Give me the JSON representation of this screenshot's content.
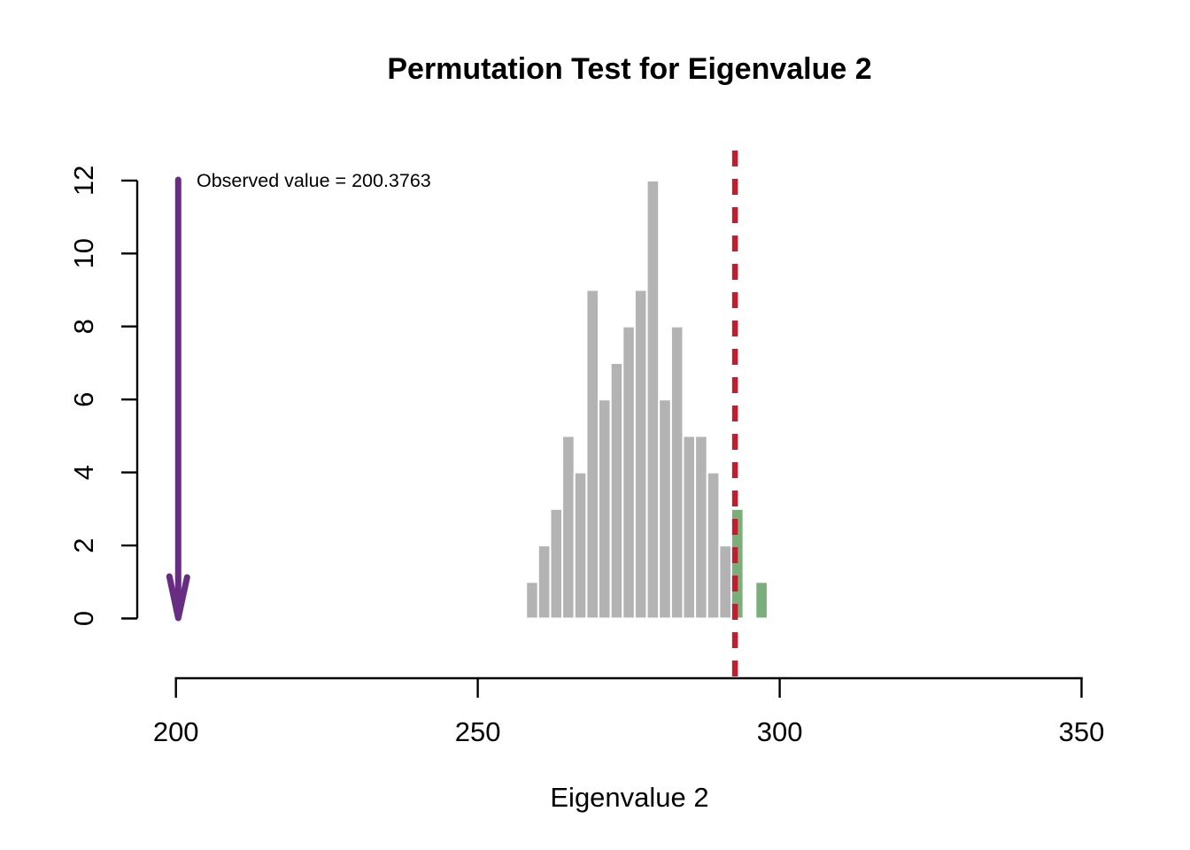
{
  "chart_data": {
    "type": "histogram",
    "title": "Permutation Test for Eigenvalue 2",
    "xlabel": "Eigenvalue 2",
    "ylabel": "",
    "xlim": [
      200,
      350
    ],
    "ylim": [
      0,
      12
    ],
    "x_ticks": [
      200,
      250,
      300,
      350
    ],
    "y_ticks": [
      0,
      2,
      4,
      6,
      8,
      10,
      12
    ],
    "grid": false,
    "bin_width": 2,
    "bin_left_edges": [
      258,
      260,
      262,
      264,
      266,
      268,
      270,
      272,
      274,
      276,
      278,
      280,
      282,
      284,
      286,
      288,
      290,
      292,
      294,
      296
    ],
    "counts": [
      1,
      2,
      3,
      5,
      4,
      9,
      6,
      7,
      8,
      9,
      12,
      6,
      8,
      5,
      5,
      4,
      2,
      3,
      0,
      1
    ],
    "total_permutations": 100,
    "highlight_from_value": 292,
    "threshold_line": {
      "x": 292.6,
      "style": "dashed",
      "color": "#be1e2d"
    },
    "observed_arrow": {
      "x": 200.3763,
      "label": "Observed value = 200.3763",
      "color": "#662d82"
    }
  },
  "colors": {
    "bar_default": "#b3b3b3",
    "bar_highlight": "#7cae7c",
    "bar_border": "#ffffff",
    "threshold": "#be1e2d",
    "observed": "#662d82",
    "axis": "#000000",
    "background": "#ffffff"
  }
}
